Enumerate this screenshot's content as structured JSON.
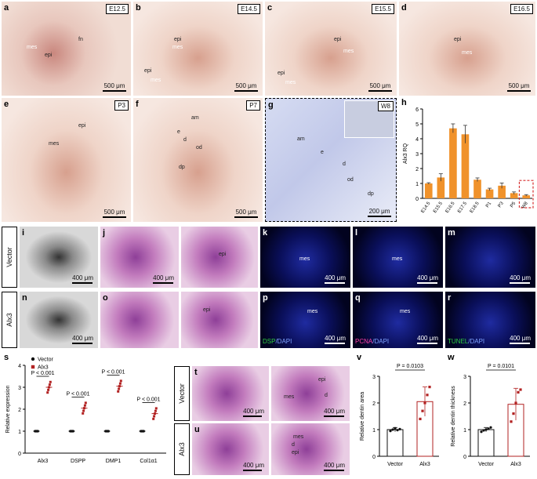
{
  "row1": [
    {
      "letter": "a",
      "stage": "E12.5",
      "labels": [
        "mes",
        "epi",
        "fn"
      ],
      "scale": "500 μm"
    },
    {
      "letter": "b",
      "stage": "E14.5",
      "labels": [
        "epi",
        "mes",
        "epi",
        "mes"
      ],
      "scale": "500 μm"
    },
    {
      "letter": "c",
      "stage": "E15.5",
      "labels": [
        "epi",
        "mes",
        "epi",
        "mes"
      ],
      "scale": "500 μm"
    },
    {
      "letter": "d",
      "stage": "E16.5",
      "labels": [
        "epi",
        "mes"
      ],
      "scale": "500 μm"
    }
  ],
  "row2": [
    {
      "letter": "e",
      "stage": "P3",
      "labels": [
        "epi",
        "mes"
      ],
      "scale": "500 μm"
    },
    {
      "letter": "f",
      "stage": "P7",
      "labels": [
        "am",
        "e",
        "d",
        "od",
        "dp"
      ],
      "scale": "500 μm"
    },
    {
      "letter": "g",
      "stage": "W8",
      "labels": [
        "am",
        "e",
        "d",
        "od",
        "dp"
      ],
      "scale": "200 μm"
    }
  ],
  "panel_h": {
    "letter": "h",
    "chart_data": {
      "type": "bar",
      "ylabel": "Alx3 RQ",
      "ylim": [
        0,
        6
      ],
      "yticks": [
        0,
        1,
        2,
        3,
        4,
        5,
        6
      ],
      "categories": [
        "E14.5",
        "E15.5",
        "E16.5",
        "E17.5",
        "E18.5",
        "P1",
        "P3",
        "P5",
        "W8"
      ],
      "values": [
        1.0,
        1.4,
        4.7,
        4.3,
        1.25,
        0.6,
        0.85,
        0.35,
        0.2
      ],
      "errors": [
        0.05,
        0.25,
        0.3,
        0.6,
        0.12,
        0.08,
        0.18,
        0.08,
        0.05
      ],
      "bar_color": "#f0922b",
      "highlight_color": "#d62f2f"
    }
  },
  "rowlabels": {
    "vector": "Vector",
    "alx3": "Alx3"
  },
  "row3": [
    {
      "letter": "i",
      "labels": [],
      "scale": "400 μm"
    },
    {
      "letter": "j",
      "labels": [],
      "scale": "400 μm"
    },
    {
      "letter": "",
      "labels": [
        "epi"
      ],
      "scale": ""
    },
    {
      "letter": "k",
      "labels": [
        "mes"
      ],
      "scale": "400 μm"
    },
    {
      "letter": "l",
      "labels": [
        "mes"
      ],
      "scale": "400 μm"
    },
    {
      "letter": "m",
      "labels": [],
      "scale": "400 μm"
    }
  ],
  "row4": [
    {
      "letter": "n",
      "labels": [],
      "scale": "400 μm"
    },
    {
      "letter": "o",
      "labels": [],
      "scale": "400 μm"
    },
    {
      "letter": "",
      "labels": [
        "epi"
      ],
      "scale": ""
    },
    {
      "letter": "p",
      "labels": [
        "mes"
      ],
      "scale": "400 μm",
      "stain": [
        "DSP",
        "/DAPI"
      ]
    },
    {
      "letter": "q",
      "labels": [
        "mes"
      ],
      "scale": "400 μm",
      "stain": [
        "PCNA",
        "/DAPI"
      ]
    },
    {
      "letter": "r",
      "labels": [],
      "scale": "400 μm",
      "stain": [
        "TUNEL",
        "/DAPI"
      ]
    }
  ],
  "panel_s": {
    "letter": "s",
    "chart_data": {
      "type": "scatter",
      "ylabel": "Relative expression",
      "ylim": [
        0,
        4
      ],
      "yticks": [
        0,
        1,
        2,
        3,
        4
      ],
      "categories": [
        "Alx3",
        "DSPP",
        "DMP1",
        "Col1α1"
      ],
      "series": [
        {
          "name": "Vector",
          "color": "#111111",
          "means": [
            1.0,
            1.0,
            1.0,
            1.0
          ]
        },
        {
          "name": "Alx3",
          "color": "#b22222",
          "means": [
            3.0,
            2.05,
            3.05,
            1.8
          ]
        }
      ],
      "pvalues": [
        "P < 0.001",
        "P < 0.001",
        "P < 0.001",
        "P < 0.001"
      ]
    }
  },
  "panel_t": {
    "letter": "t",
    "labels": [
      "mes",
      "epi",
      "d"
    ],
    "scale": "400 μm"
  },
  "panel_u": {
    "letter": "u",
    "labels": [
      "mes",
      "d",
      "epi"
    ],
    "scale": "400 μm"
  },
  "panel_v": {
    "letter": "v",
    "chart_data": {
      "type": "scatter",
      "ylabel": "Relative dentin area",
      "ylim": [
        0,
        3
      ],
      "yticks": [
        0,
        1,
        2,
        3
      ],
      "categories": [
        "Vector",
        "Alx3"
      ],
      "means": [
        1.0,
        2.05
      ],
      "errors": [
        0.08,
        0.55
      ],
      "points": [
        [
          0.95,
          1.0,
          1.05,
          0.98,
          1.02
        ],
        [
          1.4,
          1.7,
          2.0,
          2.3,
          2.6
        ]
      ],
      "pvalue": "P = 0.0103"
    }
  },
  "panel_w": {
    "letter": "w",
    "chart_data": {
      "type": "scatter",
      "ylabel": "Relative dentin thickness",
      "ylim": [
        0,
        3
      ],
      "yticks": [
        0,
        1,
        2,
        3
      ],
      "categories": [
        "Vector",
        "Alx3"
      ],
      "means": [
        1.0,
        1.95
      ],
      "errors": [
        0.08,
        0.6
      ],
      "points": [
        [
          0.92,
          0.97,
          1.0,
          1.03,
          1.08
        ],
        [
          1.3,
          1.6,
          2.0,
          2.4,
          2.5
        ]
      ],
      "pvalue": "P = 0.0101"
    }
  }
}
